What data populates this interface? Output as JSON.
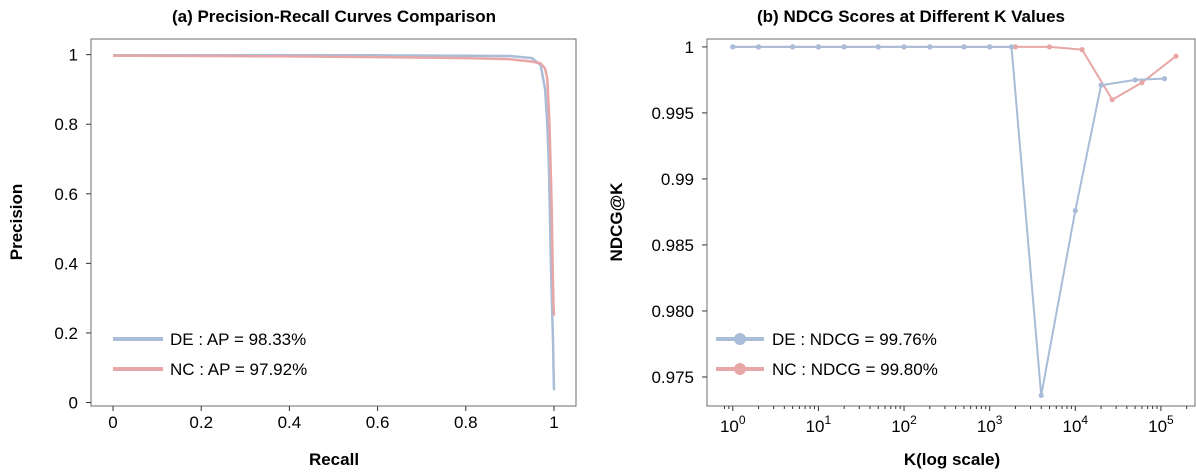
{
  "chart_data": [
    {
      "type": "line",
      "title": "(a) Precision-Recall Curves Comparison",
      "xlabel": "Recall",
      "ylabel": "Precision",
      "xlim": [
        -0.05,
        1.05
      ],
      "ylim": [
        -0.01,
        1.045
      ],
      "xticks": [
        0,
        0.2,
        0.4,
        0.6,
        0.8,
        1
      ],
      "xtick_labels": [
        "0",
        "0.2",
        "0.4",
        "0.6",
        "0.8",
        "1"
      ],
      "yticks": [
        0,
        0.2,
        0.4,
        0.6,
        0.8,
        1
      ],
      "ytick_labels": [
        "0",
        "0.2",
        "0.4",
        "0.6",
        "0.8",
        "1"
      ],
      "grid": false,
      "legend_position": "bottom-left",
      "series": [
        {
          "name": "DE : AP = 98.33%",
          "color": "#a9bcd8",
          "x": [
            0,
            0.2,
            0.4,
            0.6,
            0.8,
            0.9,
            0.95,
            0.97,
            0.98,
            0.985,
            0.988,
            0.99,
            0.993,
            0.995,
            0.997,
            0.998,
            0.999,
            1.0
          ],
          "y": [
            0.998,
            0.998,
            0.998,
            0.998,
            0.997,
            0.996,
            0.99,
            0.97,
            0.9,
            0.8,
            0.7,
            0.6,
            0.4,
            0.3,
            0.22,
            0.17,
            0.1,
            0.035
          ]
        },
        {
          "name": "NC : AP = 97.92%",
          "color": "#e8a7a7",
          "x": [
            0,
            0.2,
            0.4,
            0.6,
            0.8,
            0.9,
            0.95,
            0.97,
            0.98,
            0.985,
            0.99,
            0.993,
            0.995,
            0.997,
            0.998,
            0.999,
            1.0
          ],
          "y": [
            0.997,
            0.996,
            0.995,
            0.993,
            0.99,
            0.987,
            0.98,
            0.975,
            0.96,
            0.93,
            0.8,
            0.65,
            0.55,
            0.4,
            0.33,
            0.28,
            0.25
          ]
        }
      ]
    },
    {
      "type": "line",
      "title": "(b) NDCG Scores at Different K Values",
      "xlabel": "K(log scale)",
      "ylabel": "NDCG@K",
      "xscale": "log",
      "xlim": [
        0.5,
        250000
      ],
      "ylim": [
        0.9728,
        1.0006
      ],
      "xticks": [
        1,
        10,
        100,
        1000,
        10000,
        100000
      ],
      "xtick_labels": [
        {
          "base": "10",
          "exp": "0"
        },
        {
          "base": "10",
          "exp": "1"
        },
        {
          "base": "10",
          "exp": "2"
        },
        {
          "base": "10",
          "exp": "3"
        },
        {
          "base": "10",
          "exp": "4"
        },
        {
          "base": "10",
          "exp": "5"
        }
      ],
      "yticks": [
        0.975,
        0.98,
        0.985,
        0.99,
        0.995,
        1.0
      ],
      "ytick_labels": [
        "0.975",
        "0.980",
        "0.985",
        "0.99",
        "0.995",
        "1"
      ],
      "grid": false,
      "legend_position": "bottom-left",
      "series": [
        {
          "name": "NC : NDCG = 99.80%",
          "color": "#e8a7a7",
          "x": [
            1,
            2,
            5,
            10,
            20,
            50,
            100,
            200,
            500,
            1000,
            2000,
            5000,
            12000,
            27000,
            60000,
            150000
          ],
          "y": [
            1.0,
            1.0,
            1.0,
            1.0,
            1.0,
            1.0,
            1.0,
            1.0,
            1.0,
            1.0,
            1.0,
            1.0,
            0.9998,
            0.996,
            0.9973,
            0.9993
          ]
        },
        {
          "name": "DE : NDCG = 99.76%",
          "color": "#a9bcd8",
          "x": [
            1,
            2,
            5,
            10,
            20,
            50,
            100,
            200,
            500,
            1000,
            1800,
            4000,
            10000,
            20000,
            50000,
            110000
          ],
          "y": [
            1.0,
            1.0,
            1.0,
            1.0,
            1.0,
            1.0,
            1.0,
            1.0,
            1.0,
            1.0,
            1.0,
            0.9736,
            0.9876,
            0.9971,
            0.9975,
            0.9976
          ]
        }
      ]
    }
  ]
}
